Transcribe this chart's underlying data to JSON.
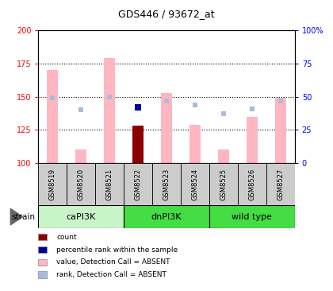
{
  "title": "GDS446 / 93672_at",
  "samples": [
    "GSM8519",
    "GSM8520",
    "GSM8521",
    "GSM8522",
    "GSM8523",
    "GSM8524",
    "GSM8525",
    "GSM8526",
    "GSM8527"
  ],
  "value_bars": [
    170,
    110,
    179,
    null,
    153,
    129,
    110,
    135,
    149
  ],
  "count_bars": [
    null,
    null,
    null,
    128,
    null,
    null,
    null,
    null,
    null
  ],
  "rank_dots": [
    149,
    140,
    150,
    142,
    147,
    144,
    137,
    141,
    147
  ],
  "percentile_dots": [
    null,
    null,
    null,
    142,
    null,
    null,
    null,
    null,
    null
  ],
  "ylim_left": [
    100,
    200
  ],
  "ylim_right": [
    0,
    100
  ],
  "yticks_left": [
    100,
    125,
    150,
    175,
    200
  ],
  "yticks_right": [
    0,
    25,
    50,
    75,
    100
  ],
  "ytick_labels_left": [
    "100",
    "125",
    "150",
    "175",
    "200"
  ],
  "ytick_labels_right": [
    "0",
    "25",
    "50",
    "75",
    "100%"
  ],
  "groups": [
    {
      "label": "caPI3K",
      "start": 0,
      "end": 3,
      "color": "#c8f5c8"
    },
    {
      "label": "dnPI3K",
      "start": 3,
      "end": 6,
      "color": "#44dd44"
    },
    {
      "label": "wild type",
      "start": 6,
      "end": 9,
      "color": "#44dd44"
    }
  ],
  "bar_color_value": "#ffb6c1",
  "bar_color_count": "#8b0000",
  "dot_color_rank": "#aabbdd",
  "dot_color_percentile": "#000099",
  "legend_items": [
    {
      "color": "#8b0000",
      "label": "count"
    },
    {
      "color": "#000099",
      "label": "percentile rank within the sample"
    },
    {
      "color": "#ffb6c1",
      "label": "value, Detection Call = ABSENT"
    },
    {
      "color": "#aabbdd",
      "label": "rank, Detection Call = ABSENT"
    }
  ],
  "group_row_color": "#cccccc",
  "bar_width": 0.4
}
